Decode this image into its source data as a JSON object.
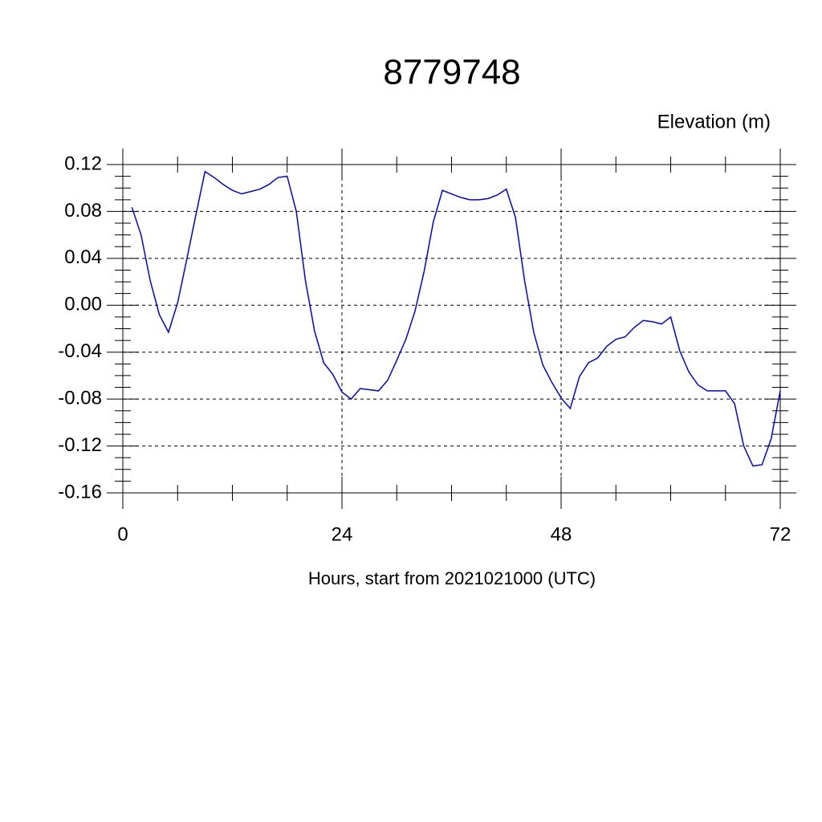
{
  "chart_data": {
    "type": "line",
    "title": "8779748",
    "ylabel": "Elevation (m)",
    "xlabel": "Hours, start from 2021021000 (UTC)",
    "xlim": [
      0,
      72
    ],
    "xticks": [
      0,
      24,
      48,
      72
    ],
    "xminorticks": [
      6,
      12,
      18,
      30,
      36,
      42,
      54,
      60,
      66
    ],
    "ylim": [
      -0.16,
      0.12
    ],
    "yticks": [
      0.12,
      0.08,
      0.04,
      {
        "value": 0,
        "label": "0.00"
      },
      -0.04,
      -0.08,
      -0.12,
      -0.16
    ],
    "yminorticks": [
      0.11,
      0.1,
      0.09,
      0.07,
      0.06,
      0.05,
      0.03,
      0.02,
      0.01,
      -0.01,
      -0.02,
      -0.03,
      -0.05,
      -0.06,
      -0.07,
      -0.09,
      -0.1,
      -0.11,
      -0.13,
      -0.14,
      -0.15
    ],
    "grid": true,
    "series": [
      {
        "color": "#0000ee",
        "x": [
          1,
          2,
          3,
          4,
          5,
          6,
          7,
          8,
          9,
          10,
          11,
          12,
          13,
          14,
          15,
          16,
          17,
          18,
          19,
          20,
          21,
          22,
          23,
          24,
          25,
          26,
          27,
          28,
          29,
          30,
          31,
          32,
          33,
          34,
          35,
          36,
          37,
          38,
          39,
          40,
          41,
          42,
          43,
          44,
          45,
          46,
          47,
          48,
          49,
          50,
          51,
          52,
          53,
          54,
          55,
          56,
          57,
          58,
          59,
          60,
          61,
          62,
          63,
          64,
          65,
          66,
          67,
          68,
          69,
          70,
          71,
          72
        ],
        "values": [
          0.0835,
          0.06,
          0.021,
          -0.008,
          -0.023,
          0.002,
          0.039,
          0.077,
          0.114,
          0.109,
          0.103,
          0.098,
          0.095,
          0.097,
          0.099,
          0.103,
          0.109,
          0.11,
          0.08,
          0.021,
          -0.022,
          -0.049,
          -0.059,
          -0.074,
          -0.08,
          -0.071,
          -0.072,
          -0.073,
          -0.064,
          -0.047,
          -0.029,
          -0.005,
          0.029,
          0.071,
          0.098,
          0.095,
          0.092,
          0.09,
          0.09,
          0.091,
          0.094,
          0.099,
          0.075,
          0.021,
          -0.023,
          -0.051,
          -0.066,
          -0.079,
          -0.088,
          -0.061,
          -0.049,
          -0.045,
          -0.035,
          -0.029,
          -0.027,
          -0.019,
          -0.013,
          -0.014,
          -0.016,
          -0.01,
          -0.039,
          -0.057,
          -0.068,
          -0.073,
          -0.073,
          -0.073,
          -0.084,
          -0.12,
          -0.137,
          -0.136,
          -0.114,
          -0.073
        ]
      }
    ]
  }
}
